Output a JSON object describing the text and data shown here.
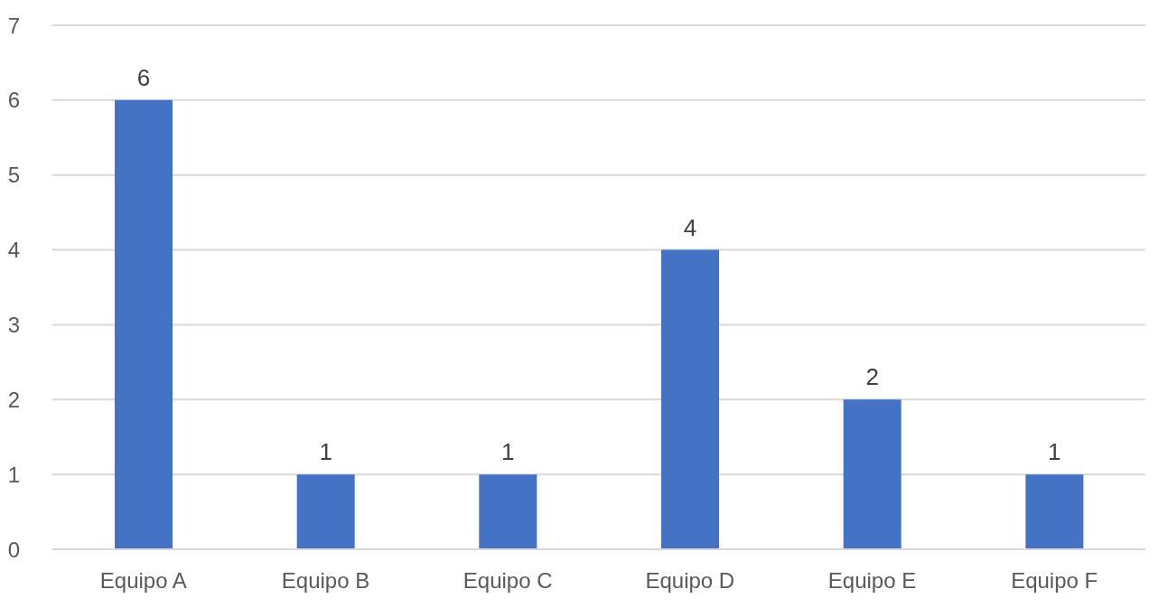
{
  "chart_data": {
    "type": "bar",
    "categories": [
      "Equipo A",
      "Equipo B",
      "Equipo C",
      "Equipo D",
      "Equipo E",
      "Equipo F"
    ],
    "values": [
      6,
      1,
      1,
      4,
      2,
      1
    ],
    "color": "#4472c4",
    "ylim": [
      0,
      7
    ],
    "yticks": [
      0,
      1,
      2,
      3,
      4,
      5,
      6,
      7
    ],
    "grid": "y",
    "data_labels": true
  }
}
